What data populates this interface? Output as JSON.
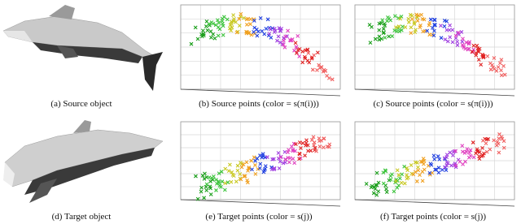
{
  "figure": {
    "panels": [
      {
        "caption": "(a) Source object"
      },
      {
        "caption": "(b) Source points (color = s(π(i)))"
      },
      {
        "caption": "(c) Source points (color = s(π(i)))"
      },
      {
        "caption": "(d) Target object"
      },
      {
        "caption": "(e) Target points (color = s(j))"
      },
      {
        "caption": "(f) Target points (color = s(j))"
      }
    ]
  }
}
